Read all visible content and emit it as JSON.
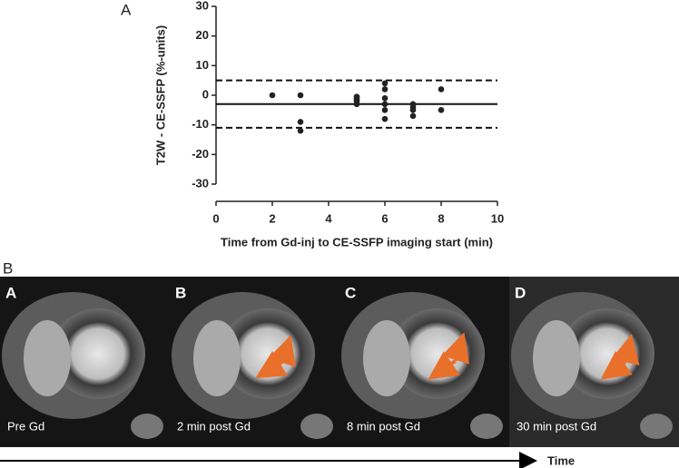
{
  "panel_a_label": "A",
  "chart_data": {
    "type": "scatter",
    "xlabel": "Time from Gd-inj to CE-SSFP imaging start (min)",
    "ylabel": "T2W - CE-SSFP (%-units)",
    "x": [
      2,
      3,
      3,
      3,
      5,
      5,
      5,
      5,
      5,
      6,
      6,
      6,
      6,
      6,
      6,
      7,
      7,
      7,
      7,
      8,
      8
    ],
    "values": [
      0,
      0,
      -9,
      -12,
      -0.5,
      -1,
      -1.5,
      -2,
      -3,
      4,
      2,
      -1,
      -3,
      -5,
      -8,
      -3,
      -4,
      -5,
      -7,
      2,
      -5
    ],
    "color": "#222222",
    "xlim": [
      0,
      10
    ],
    "xticks": [
      0,
      2,
      4,
      6,
      8,
      10
    ],
    "ylim": [
      -30,
      30
    ],
    "yticks": [
      -30,
      -20,
      -10,
      0,
      10,
      20,
      30
    ],
    "hlines": [
      {
        "value": -3,
        "style": "solid"
      },
      {
        "value": 5,
        "style": "dashed"
      },
      {
        "value": -11,
        "style": "dashed"
      }
    ]
  },
  "panel_b": {
    "label": "B",
    "images": [
      {
        "letter": "A",
        "caption": "Pre Gd"
      },
      {
        "letter": "B",
        "caption": "2 min post Gd"
      },
      {
        "letter": "C",
        "caption": "8 min post Gd"
      },
      {
        "letter": "D",
        "caption": "30 min post Gd"
      }
    ],
    "time_label": "Time"
  }
}
